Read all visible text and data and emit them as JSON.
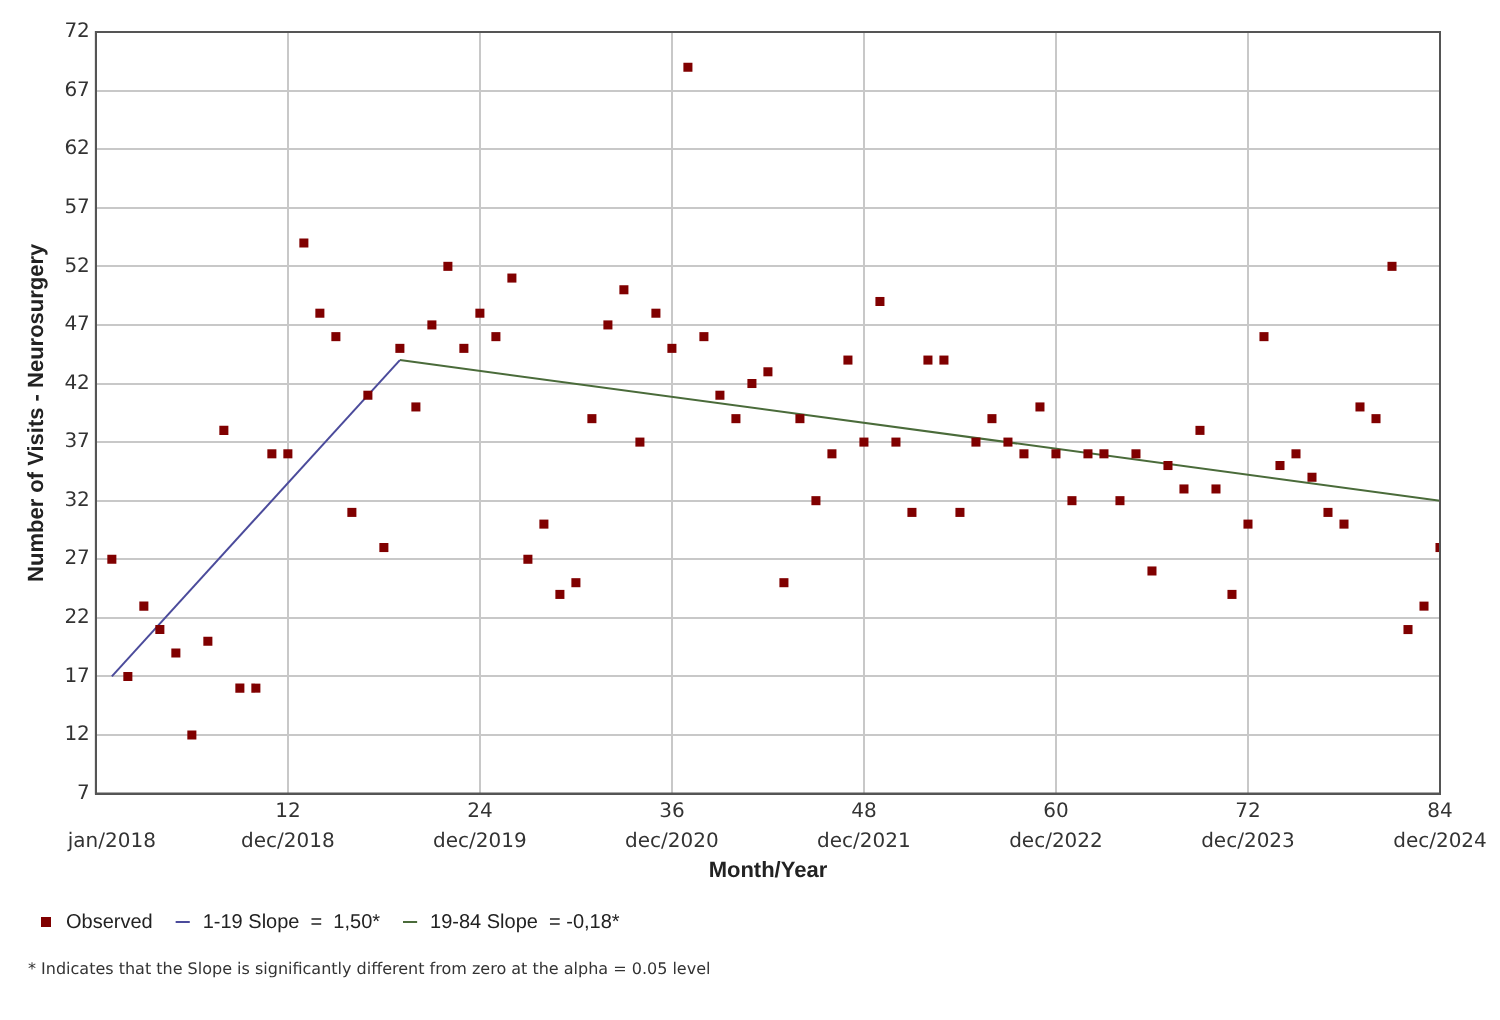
{
  "chart_data": {
    "type": "scatter",
    "xlabel": "Month/Year",
    "ylabel": "Number of Visits - Neurosurgery",
    "xlim": [
      0,
      84
    ],
    "ylim": [
      7,
      72
    ],
    "xticks": [
      12,
      24,
      36,
      48,
      60,
      72,
      84
    ],
    "x2lim": [
      "2017-12",
      "2024-12"
    ],
    "x2ticks": [
      {
        "value": "2018-01",
        "label": "jan/2018"
      },
      {
        "value": "2018-12",
        "label": "dec/2018"
      },
      {
        "value": "2019-12",
        "label": "dec/2019"
      },
      {
        "value": "2020-12",
        "label": "dec/2020"
      },
      {
        "value": "2021-12",
        "label": "dec/2021"
      },
      {
        "value": "2022-12",
        "label": "dec/2022"
      },
      {
        "value": "2023-12",
        "label": "dec/2023"
      },
      {
        "value": "2024-12",
        "label": "dec/2024"
      }
    ],
    "yticks": [
      7,
      12,
      17,
      22,
      27,
      32,
      37,
      42,
      47,
      52,
      57,
      62,
      67,
      72
    ],
    "grid": true,
    "legend": "bottom left",
    "series": [
      {
        "name": "Observed",
        "marker": "square",
        "color": "#800000",
        "x": [
          1,
          2,
          3,
          4,
          5,
          6,
          7,
          8,
          9,
          10,
          11,
          12,
          13,
          14,
          15,
          16,
          17,
          18,
          19,
          20,
          21,
          22,
          23,
          24,
          25,
          26,
          27,
          28,
          29,
          30,
          31,
          32,
          33,
          34,
          35,
          36,
          37,
          38,
          39,
          40,
          41,
          42,
          43,
          44,
          45,
          46,
          47,
          48,
          49,
          50,
          51,
          52,
          53,
          54,
          55,
          56,
          57,
          58,
          59,
          60,
          61,
          62,
          63,
          64,
          65,
          66,
          67,
          68,
          69,
          70,
          71,
          72,
          73,
          74,
          75,
          76,
          77,
          78,
          79,
          80,
          81,
          82,
          83,
          84
        ],
        "values": [
          27,
          17,
          23,
          21,
          19,
          12,
          20,
          38,
          16,
          16,
          36,
          36,
          54,
          48,
          46,
          31,
          41,
          28,
          45,
          40,
          47,
          52,
          45,
          48,
          46,
          51,
          27,
          30,
          24,
          25,
          39,
          47,
          50,
          37,
          48,
          45,
          69,
          46,
          41,
          39,
          42,
          43,
          25,
          39,
          32,
          36,
          44,
          37,
          49,
          37,
          31,
          44,
          44,
          31,
          37,
          39,
          37,
          36,
          40,
          36,
          32,
          36,
          36,
          32,
          36,
          26,
          35,
          33,
          38,
          33,
          24,
          30,
          46,
          35,
          36,
          34,
          31,
          30,
          40,
          39,
          52,
          21,
          23,
          28
        ]
      },
      {
        "name": "1-19 Slope  =  1,50*",
        "type": "line",
        "color": "#4b4b9b",
        "x": [
          1,
          19
        ],
        "values": [
          17,
          44
        ]
      },
      {
        "name": "19-84 Slope  = -0,18*",
        "type": "line",
        "color": "#4a6b3a",
        "x": [
          19,
          84
        ],
        "values": [
          44,
          32
        ]
      }
    ],
    "annotations": [
      "* Indicates that the Slope is significantly different from zero at the alpha = 0.05 level"
    ]
  }
}
